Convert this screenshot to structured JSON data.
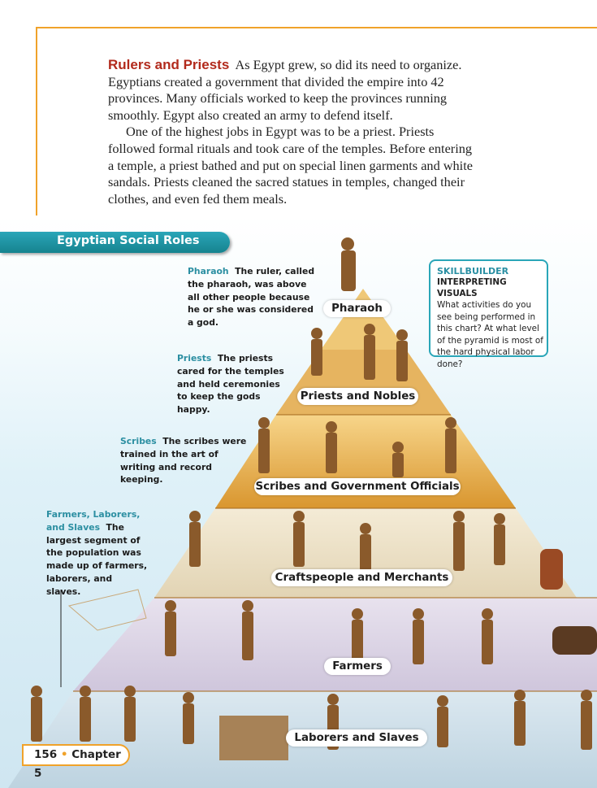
{
  "reading": {
    "heading": "Rulers and Priests",
    "paragraph1": "As Egypt grew, so did its need to organize. Egyptians created a government that divided the empire into 42 provinces. Many officials worked to keep the provinces running smoothly. Egypt also created an army to defend itself.",
    "paragraph2": "One of the highest jobs in Egypt was to be a priest. Priests followed formal rituals and took care of the temples. Before entering a temple, a priest bathed and put on special linen garments and white sandals. Priests cleaned the sacred statues in temples, changed their clothes, and even fed them meals."
  },
  "chart": {
    "title": "Egyptian Social Roles",
    "notes": {
      "pharaoh": {
        "lead": "Pharaoh",
        "text": "The ruler, called the pharaoh, was above all other people because he or she was considered a god."
      },
      "priests": {
        "lead": "Priests",
        "text": "The priests cared for the temples and held ceremonies to keep the gods happy."
      },
      "scribes": {
        "lead": "Scribes",
        "text": "The scribes were trained in the art of writing and record keeping."
      },
      "farmers": {
        "lead": "Farmers, Laborers, and Slaves",
        "text": "The largest segment of the population was made up of farmers, laborers, and slaves."
      }
    },
    "tiers": {
      "pharaoh": "Pharaoh",
      "priests": "Priests and Nobles",
      "scribes": "Scribes and Government Officials",
      "craftspeople": "Craftspeople and Merchants",
      "farmers": "Farmers",
      "laborers": "Laborers and Slaves"
    },
    "skillbuilder": {
      "label": "SKILLBUILDER",
      "sublabel": "INTERPRETING VISUALS",
      "question": "What activities do you see being performed in this chart? At what level of the pyramid is most of the hard physical labor done?"
    }
  },
  "footer": {
    "page": "156",
    "bullet": "•",
    "chapter": "Chapter 5"
  },
  "colors": {
    "accent_orange": "#f0a22a",
    "heading_red": "#b22a1c",
    "teal": "#2aa6b8"
  }
}
